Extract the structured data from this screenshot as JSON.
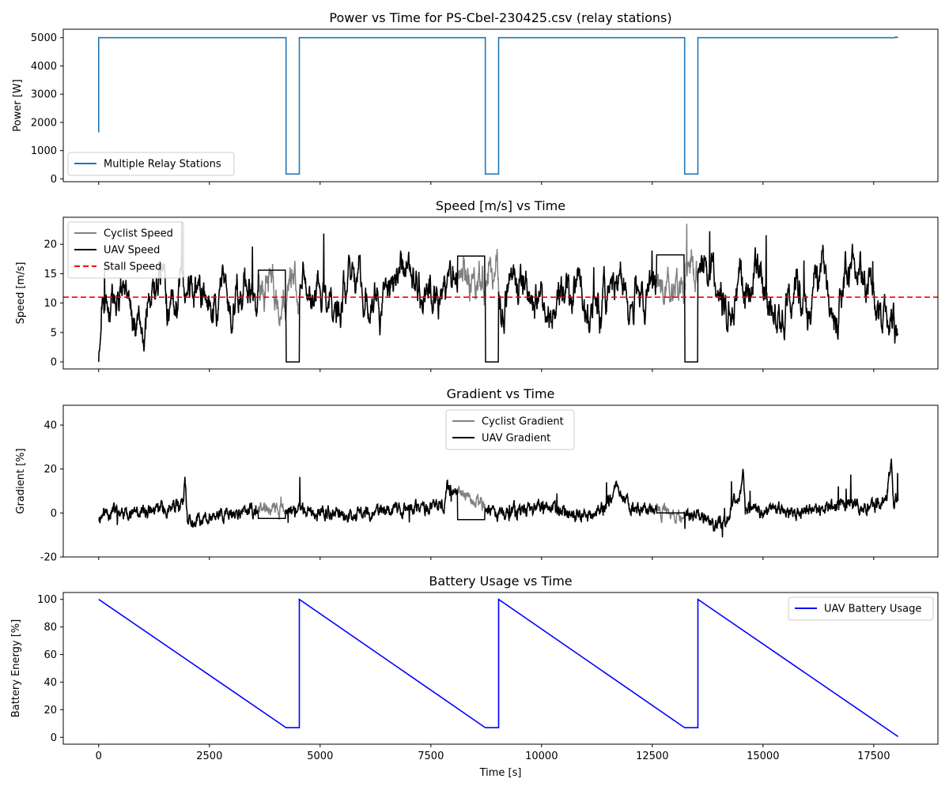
{
  "chart_data": [
    {
      "type": "line",
      "title": "Power vs Time for PS-Cbel-230425.csv (relay stations)",
      "xlabel": "",
      "ylabel": "Power [W]",
      "xlim": [
        -800,
        18950
      ],
      "ylim": [
        -100,
        5300
      ],
      "yticks": [
        0,
        1000,
        2000,
        3000,
        4000,
        5000
      ],
      "grid": false,
      "legend": "lower left",
      "series": [
        {
          "name": "Multiple Relay Stations",
          "color": "#1f77b4",
          "x": [
            0,
            0,
            0,
            4230,
            4230,
            4530,
            4530,
            8730,
            8730,
            9030,
            9030,
            13230,
            13230,
            13530,
            13530,
            17980,
            18000,
            18050
          ],
          "y": [
            1650,
            1700,
            5000,
            5000,
            170,
            170,
            5000,
            5000,
            170,
            170,
            5000,
            5000,
            170,
            170,
            5000,
            5000,
            5030,
            5000
          ]
        }
      ]
    },
    {
      "type": "line",
      "title": "Speed [m/s] vs Time",
      "xlabel": "",
      "ylabel": "Speed [m/s]",
      "xlim": [
        -800,
        18950
      ],
      "ylim": [
        -1.2,
        24.6
      ],
      "yticks": [
        0,
        5,
        10,
        15,
        20
      ],
      "grid": false,
      "legend": "upper left",
      "stall_speed": 11,
      "relay_gaps": [
        [
          3600,
          4220,
          15.6
        ],
        [
          8100,
          8720,
          18.0
        ],
        [
          12600,
          13220,
          18.2
        ]
      ],
      "downtime": [
        [
          4230,
          4530
        ],
        [
          8730,
          9030
        ],
        [
          13230,
          13530
        ]
      ],
      "series": [
        {
          "name": "Cyclist Speed",
          "color": "#808080"
        },
        {
          "name": "UAV Speed",
          "color": "#000000"
        },
        {
          "name": "Stall Speed",
          "color": "#ff0000",
          "dashed": true
        }
      ]
    },
    {
      "type": "line",
      "title": "Gradient vs Time",
      "xlabel": "",
      "ylabel": "Gradient [%]",
      "xlim": [
        -800,
        18950
      ],
      "ylim": [
        -20,
        49
      ],
      "yticks": [
        -20,
        0,
        20,
        40
      ],
      "grid": false,
      "legend": "upper center",
      "relay_gaps": [
        [
          3600,
          4220,
          -2.5
        ],
        [
          8100,
          8720,
          -3
        ],
        [
          12600,
          13220,
          0
        ]
      ],
      "series": [
        {
          "name": "Cyclist Gradient",
          "color": "#808080"
        },
        {
          "name": "UAV Gradient",
          "color": "#000000"
        }
      ]
    },
    {
      "type": "line",
      "title": "Battery Usage vs Time",
      "xlabel": "Time [s]",
      "ylabel": "Battery Energy [%]",
      "xlim": [
        -800,
        18950
      ],
      "ylim": [
        -5,
        105
      ],
      "yticks": [
        0,
        20,
        40,
        60,
        80,
        100
      ],
      "xticks": [
        0,
        2500,
        5000,
        7500,
        10000,
        12500,
        15000,
        17500
      ],
      "grid": false,
      "legend": "upper right",
      "series": [
        {
          "name": "UAV Battery Usage",
          "color": "#0000ff",
          "x": [
            0,
            4230,
            4530,
            4530,
            8730,
            9030,
            9030,
            13230,
            13530,
            13530,
            18050
          ],
          "y": [
            100,
            7,
            7,
            100,
            7,
            7,
            100,
            7,
            7,
            100,
            0.5
          ]
        }
      ]
    }
  ]
}
